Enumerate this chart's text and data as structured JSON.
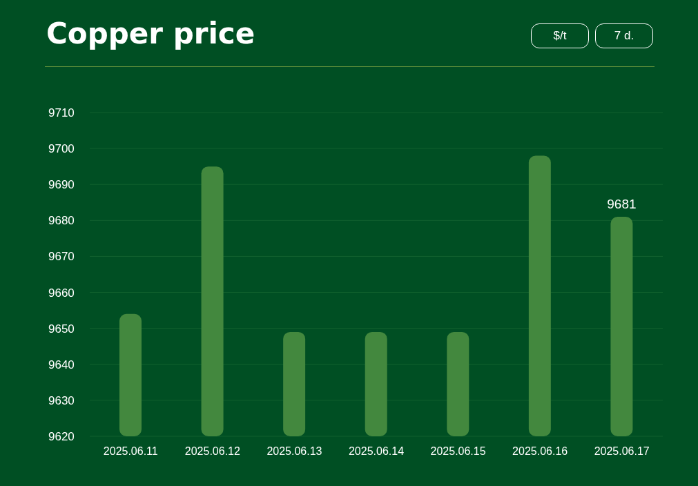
{
  "chart_data": {
    "type": "bar",
    "title": "Copper price",
    "annotations": [
      "$/t",
      "7 d."
    ],
    "categories": [
      "2025.06.11",
      "2025.06.12",
      "2025.06.13",
      "2025.06.14",
      "2025.06.15",
      "2025.06.16",
      "2025.06.17"
    ],
    "values": [
      9654,
      9695,
      9649,
      9649,
      9649,
      9698,
      9681
    ],
    "color": "#43883e",
    "value_labels": [
      null,
      null,
      null,
      null,
      null,
      null,
      "9681"
    ],
    "ylim": [
      9620,
      9710
    ],
    "yticks": [
      9620,
      9630,
      9640,
      9650,
      9660,
      9670,
      9680,
      9690,
      9700,
      9710
    ],
    "grid": "y",
    "legend": false
  }
}
